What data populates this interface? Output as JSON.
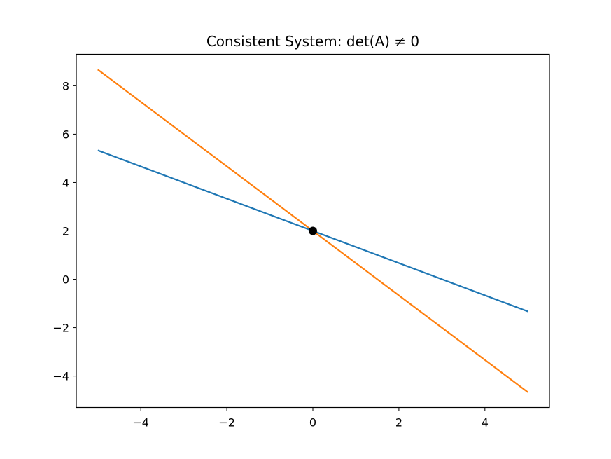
{
  "chart_data": {
    "type": "line",
    "title": "Consistent System: det(A) ≠ 0",
    "xlabel": "",
    "ylabel": "",
    "xlim": [
      -5.5,
      5.5
    ],
    "ylim": [
      -5.3,
      9.3
    ],
    "x_ticks": [
      -4,
      -2,
      0,
      2,
      4
    ],
    "x_tick_labels": [
      "−4",
      "−2",
      "0",
      "2",
      "4"
    ],
    "y_ticks": [
      -4,
      -2,
      0,
      2,
      4,
      6,
      8
    ],
    "y_tick_labels": [
      "−4",
      "−2",
      "0",
      "2",
      "4",
      "6",
      "8"
    ],
    "grid": false,
    "legend": "none",
    "series": [
      {
        "color": "#1f77b4",
        "x": [
          -5,
          5
        ],
        "y": [
          5.33,
          -1.33
        ]
      },
      {
        "color": "#ff7f0e",
        "x": [
          -5,
          5
        ],
        "y": [
          8.67,
          -4.67
        ]
      }
    ],
    "points": [
      {
        "x": 0,
        "y": 2,
        "color": "#000000"
      }
    ]
  }
}
